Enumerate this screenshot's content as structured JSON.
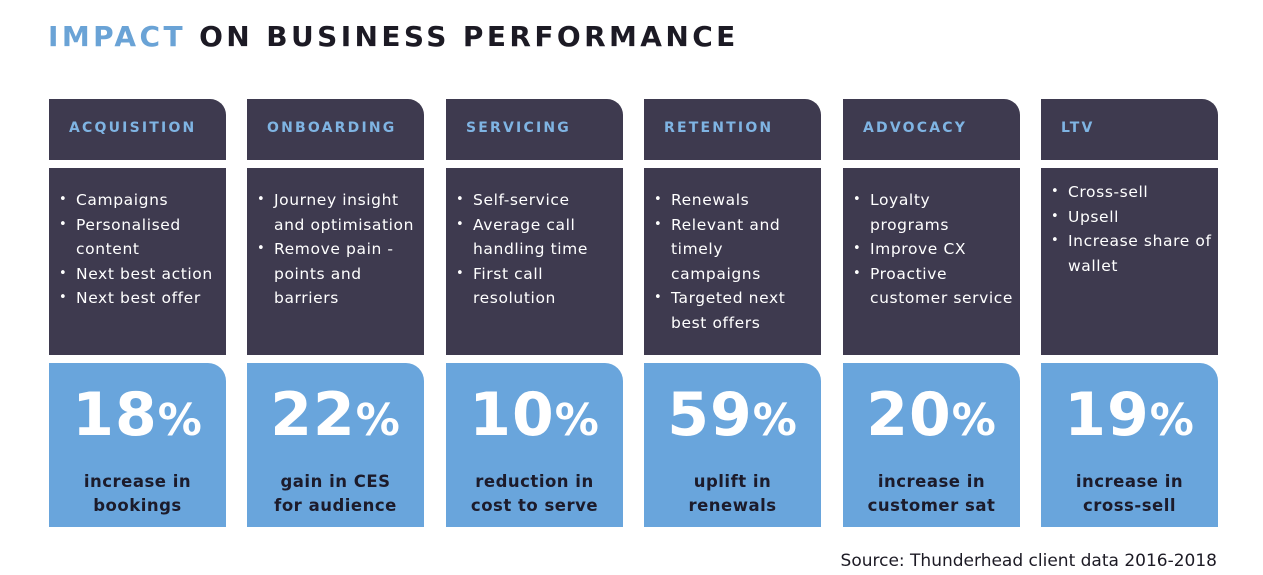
{
  "title": {
    "accent": "IMPACT",
    "rest": " ON BUSINESS PERFORMANCE"
  },
  "colors": {
    "dark_panel": "#3e3a4f",
    "stat_panel": "#69a5dc",
    "header_text": "#7fb4e3",
    "title_accent": "#6aa3d6"
  },
  "columns": [
    {
      "header": "ACQUISITION",
      "bullets": [
        "Campaigns",
        "Personalised content",
        "Next best action",
        "Next best offer"
      ],
      "stat_number": "18",
      "stat_unit": "%",
      "stat_line1": "increase in",
      "stat_line2": "bookings"
    },
    {
      "header": "ONBOARDING",
      "bullets": [
        "Journey insight and optimisation",
        "Remove pain -points and barriers"
      ],
      "stat_number": "22",
      "stat_unit": "%",
      "stat_line1": "gain in CES",
      "stat_line2": "for audience"
    },
    {
      "header": "SERVICING",
      "bullets": [
        "Self-service",
        "Average call handling time",
        "First call resolution"
      ],
      "stat_number": "10",
      "stat_unit": "%",
      "stat_line1": "reduction in",
      "stat_line2": "cost to serve"
    },
    {
      "header": "RETENTION",
      "bullets": [
        "Renewals",
        "Relevant and timely campaigns",
        "Targeted next best offers"
      ],
      "stat_number": "59",
      "stat_unit": "%",
      "stat_line1": "uplift in",
      "stat_line2": "renewals"
    },
    {
      "header": "ADVOCACY",
      "bullets": [
        "Loyalty programs",
        "Improve CX",
        "Proactive customer service"
      ],
      "stat_number": "20",
      "stat_unit": "%",
      "stat_line1": "increase in",
      "stat_line2": "customer sat"
    },
    {
      "header": "LTV",
      "bullets": [
        "Cross-sell",
        "Upsell",
        "Increase share of wallet"
      ],
      "stat_number": "19",
      "stat_unit": "%",
      "stat_line1": "increase in",
      "stat_line2": "cross-sell"
    }
  ],
  "source": "Source: Thunderhead client data 2016-2018"
}
